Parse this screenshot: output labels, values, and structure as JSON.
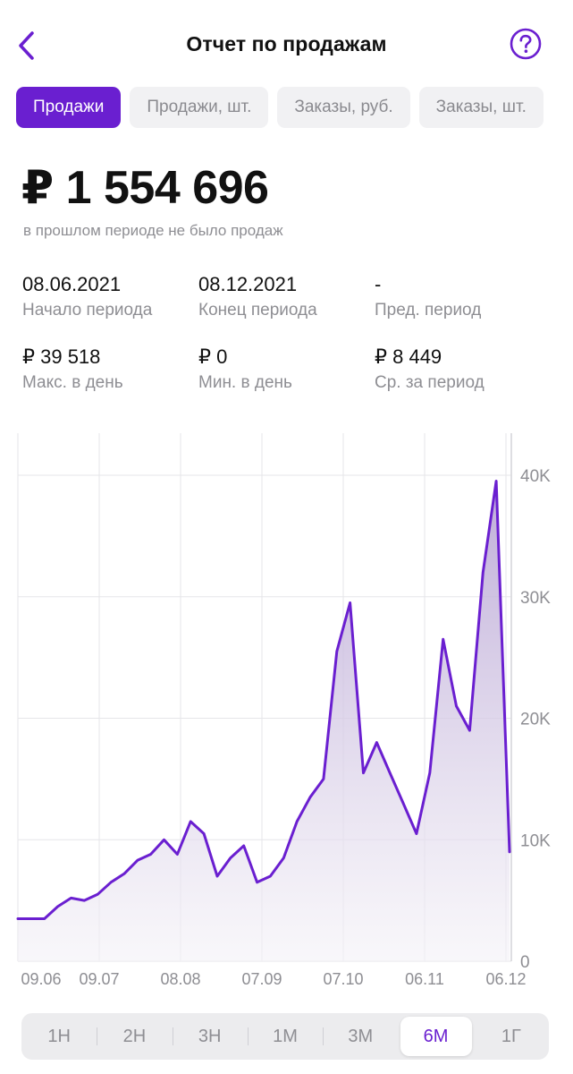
{
  "header": {
    "title": "Отчет по продажам"
  },
  "tabs": [
    {
      "label": "Продажи",
      "active": true
    },
    {
      "label": "Продажи, шт.",
      "active": false
    },
    {
      "label": "Заказы, руб.",
      "active": false
    },
    {
      "label": "Заказы, шт.",
      "active": false
    }
  ],
  "summary": {
    "total": "₽ 1 554 696",
    "note": "в прошлом периоде не было продаж"
  },
  "stats": {
    "start": {
      "value": "08.06.2021",
      "label": "Начало периода"
    },
    "end": {
      "value": "08.12.2021",
      "label": "Конец периода"
    },
    "prev": {
      "value": "-",
      "label": "Пред. период"
    },
    "max": {
      "value": "₽ 39 518",
      "label": "Макс. в день"
    },
    "min": {
      "value": "₽ 0",
      "label": "Мин. в день"
    },
    "avg": {
      "value": "₽ 8 449",
      "label": "Ср. за период"
    }
  },
  "chart_data": {
    "type": "area",
    "color": "#6a1fd0",
    "y_ticks": [
      {
        "label": "40K",
        "value": 40000
      },
      {
        "label": "30K",
        "value": 30000
      },
      {
        "label": "20K",
        "value": 20000
      },
      {
        "label": "10K",
        "value": 10000
      },
      {
        "label": "0",
        "value": 0
      }
    ],
    "x_ticks": [
      "09.06",
      "09.07",
      "08.08",
      "07.09",
      "07.10",
      "06.11",
      "06.12"
    ],
    "ylim": [
      0,
      44000
    ],
    "grid": true,
    "x": [
      "08.06",
      "13.06",
      "18.06",
      "23.06",
      "28.06",
      "03.07",
      "08.07",
      "13.07",
      "18.07",
      "23.07",
      "28.07",
      "02.08",
      "07.08",
      "12.08",
      "17.08",
      "22.08",
      "27.08",
      "01.09",
      "06.09",
      "11.09",
      "16.09",
      "21.09",
      "26.09",
      "01.10",
      "06.10",
      "11.10",
      "16.10",
      "21.10",
      "26.10",
      "31.10",
      "05.11",
      "10.11",
      "15.11",
      "20.11",
      "25.11",
      "30.11",
      "05.12",
      "08.12"
    ],
    "y": [
      3500,
      3500,
      3500,
      4500,
      5200,
      5000,
      5500,
      6500,
      7200,
      8300,
      8800,
      10000,
      8800,
      11500,
      10500,
      7000,
      8500,
      9500,
      6500,
      7000,
      8500,
      11500,
      13500,
      15000,
      25500,
      29500,
      15500,
      18000,
      15500,
      13000,
      10500,
      15500,
      26500,
      21000,
      19000,
      32000,
      39518,
      9000
    ]
  },
  "periods": [
    {
      "label": "1Н",
      "active": false
    },
    {
      "label": "2Н",
      "active": false
    },
    {
      "label": "3Н",
      "active": false
    },
    {
      "label": "1М",
      "active": false
    },
    {
      "label": "3М",
      "active": false
    },
    {
      "label": "6М",
      "active": true
    },
    {
      "label": "1Г",
      "active": false
    }
  ]
}
